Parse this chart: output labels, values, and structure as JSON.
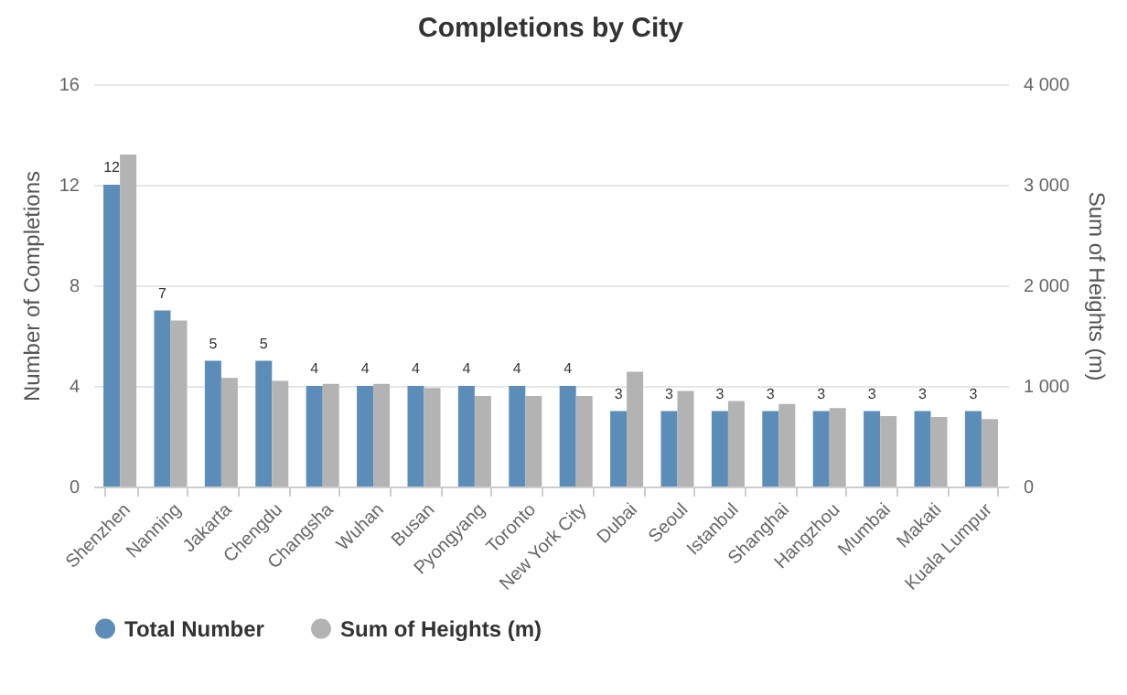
{
  "chart_data": {
    "type": "bar",
    "title": "Completions by City",
    "categories": [
      "Shenzhen",
      "Nanning",
      "Jakarta",
      "Chengdu",
      "Changsha",
      "Wuhan",
      "Busan",
      "Pyongyang",
      "Toronto",
      "New York City",
      "Dubai",
      "Seoul",
      "Istanbul",
      "Shanghai",
      "Hangzhou",
      "Mumbai",
      "Makati",
      "Kuala Lumpur"
    ],
    "series": [
      {
        "name": "Total Number",
        "color": "#5b8db8",
        "values": [
          12,
          7,
          5,
          5,
          4,
          4,
          4,
          4,
          4,
          4,
          3,
          3,
          3,
          3,
          3,
          3,
          3,
          3
        ],
        "value_labels": [
          "12",
          "7",
          "5",
          "5",
          "4",
          "4",
          "4",
          "4",
          "4",
          "4",
          "3",
          "3",
          "3",
          "3",
          "3",
          "3",
          "3",
          "3"
        ]
      },
      {
        "name": "Sum of Heights (m)",
        "color": "#b3b3b3",
        "axis": "y2",
        "values": [
          3300,
          1650,
          1080,
          1050,
          1020,
          1020,
          980,
          900,
          900,
          900,
          1140,
          950,
          850,
          820,
          780,
          700,
          690,
          670
        ]
      }
    ],
    "ylabel": "Number of Completions",
    "y2label": "Sum of Heights (m)",
    "ylim": [
      0,
      16
    ],
    "yticks": [
      0,
      4,
      8,
      12,
      16
    ],
    "y2lim": [
      0,
      4000
    ],
    "y2ticks": [
      {
        "value": 0,
        "label": "0"
      },
      {
        "value": 1000,
        "label": "1 000"
      },
      {
        "value": 2000,
        "label": "2 000"
      },
      {
        "value": 3000,
        "label": "3 000"
      },
      {
        "value": 4000,
        "label": "4 000"
      }
    ],
    "grid": "y",
    "legend": "bottom"
  }
}
